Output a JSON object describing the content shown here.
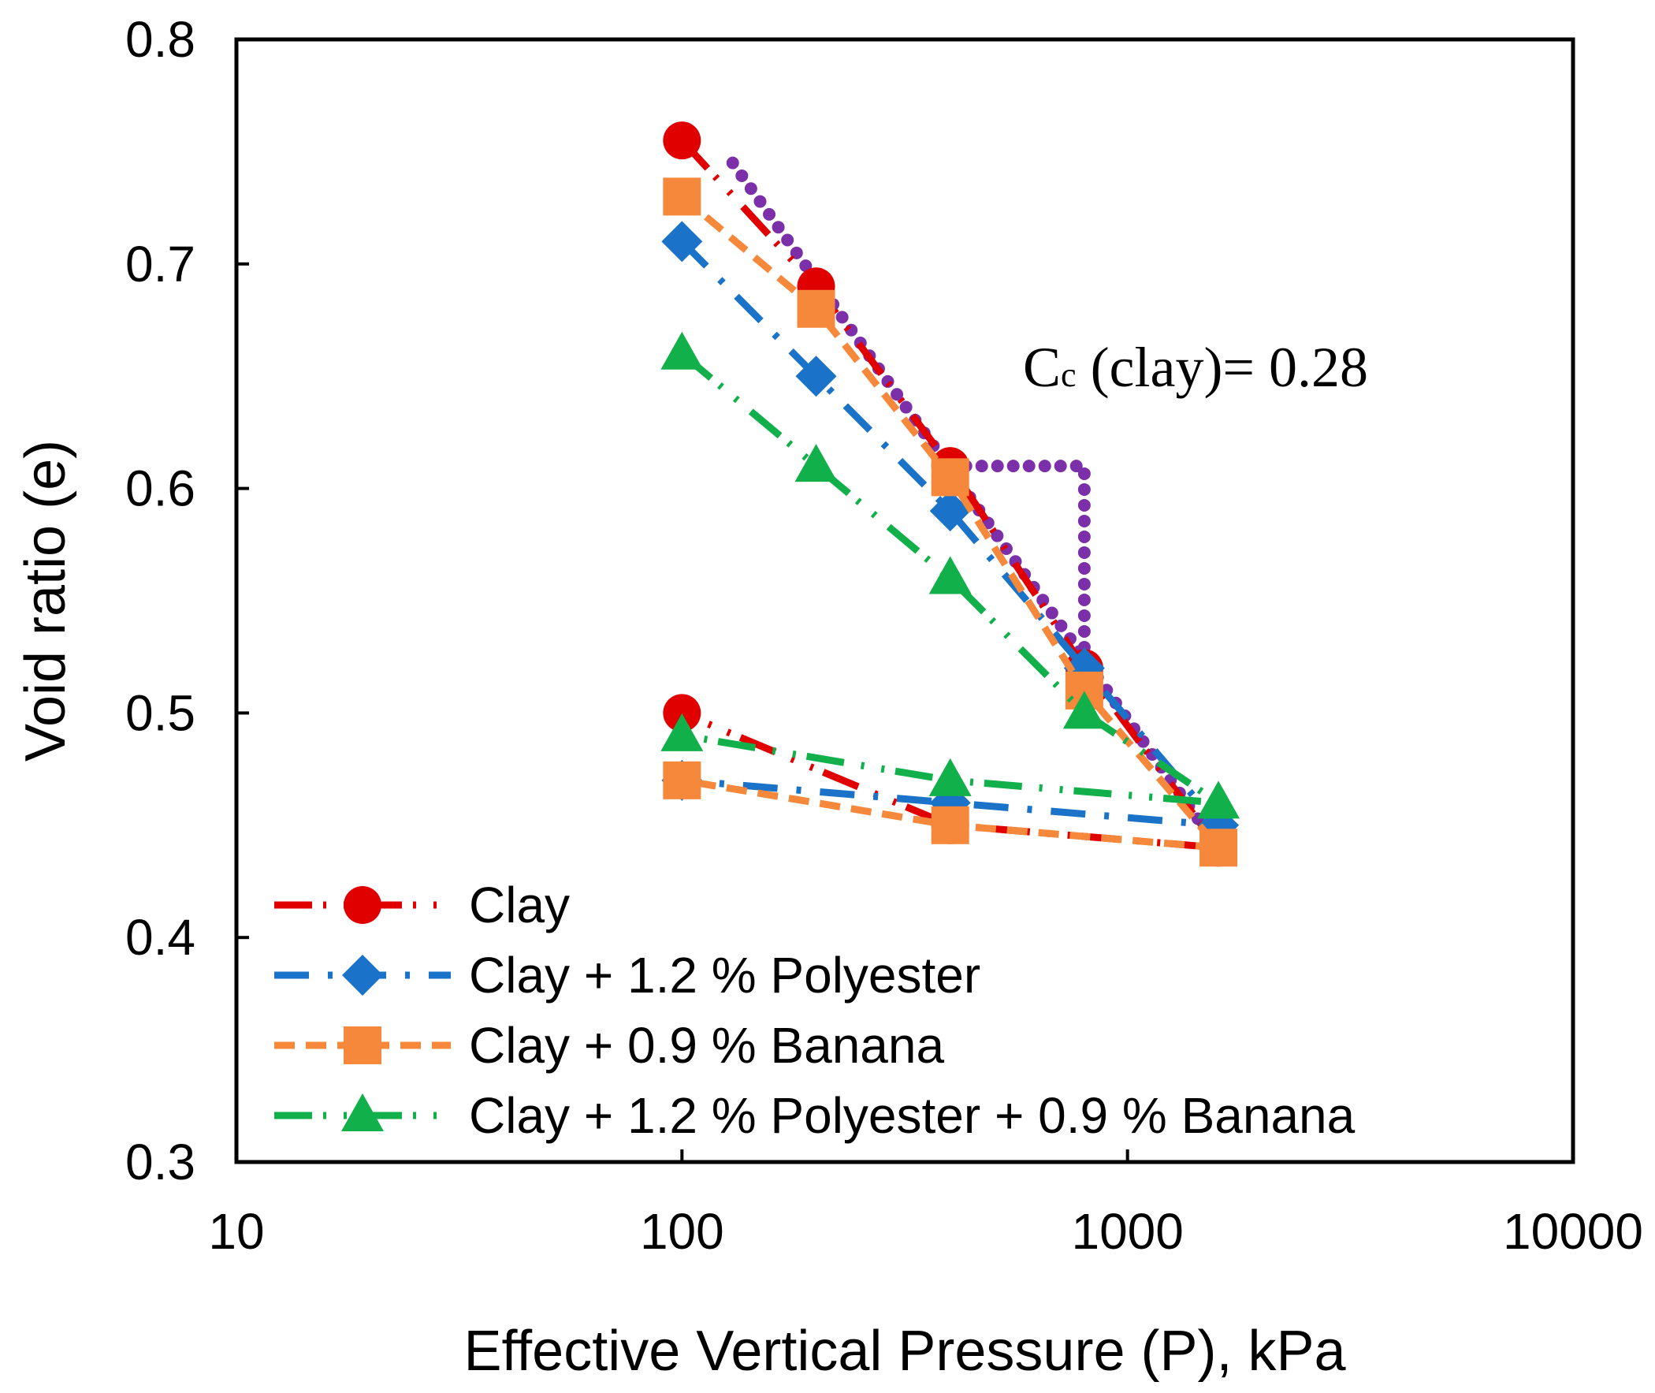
{
  "chart_data": {
    "type": "line",
    "x_scale": "log",
    "xlabel": "Effective Vertical Pressure (P), kPa",
    "ylabel": "Void ratio (e)",
    "xlim": [
      10,
      10000
    ],
    "ylim": [
      0.3,
      0.8
    ],
    "x_ticks": [
      10,
      100,
      1000,
      10000
    ],
    "x_tick_labels": [
      "10",
      "100",
      "1000",
      "10000"
    ],
    "y_ticks": [
      0.3,
      0.4,
      0.5,
      0.6,
      0.7,
      0.8
    ],
    "y_tick_labels": [
      "0.3",
      "0.4",
      "0.5",
      "0.6",
      "0.7",
      "0.8"
    ],
    "grid": false,
    "legend_position": "bottom-left",
    "annotation": {
      "main": "C",
      "sub": "c",
      "rest": " (clay)= 0.28"
    },
    "series": [
      {
        "name": "Clay",
        "color": "#e00000",
        "marker": "circle",
        "line_style": "long-dash-dot",
        "x": [
          100,
          200,
          400,
          800,
          1600,
          400,
          100
        ],
        "y": [
          0.755,
          0.69,
          0.61,
          0.52,
          0.44,
          0.45,
          0.5
        ]
      },
      {
        "name": "Clay + 1.2 % Polyester",
        "color": "#1a73c8",
        "marker": "diamond",
        "line_style": "dash-dot",
        "x": [
          100,
          200,
          400,
          800,
          1600,
          400,
          100
        ],
        "y": [
          0.71,
          0.65,
          0.59,
          0.52,
          0.45,
          0.46,
          0.47
        ]
      },
      {
        "name": "Clay + 0.9 % Banana",
        "color": "#f5883a",
        "marker": "square",
        "line_style": "dash",
        "x": [
          100,
          200,
          400,
          800,
          1600,
          400,
          100
        ],
        "y": [
          0.73,
          0.68,
          0.605,
          0.51,
          0.44,
          0.45,
          0.47
        ]
      },
      {
        "name": "Clay + 1.2 % Polyester + 0.9 % Banana",
        "color": "#12b04a",
        "marker": "triangle",
        "line_style": "long-dash-dot",
        "x": [
          100,
          200,
          400,
          800,
          1600,
          400,
          100
        ],
        "y": [
          0.66,
          0.61,
          0.56,
          0.5,
          0.46,
          0.47,
          0.49
        ]
      }
    ],
    "construction": {
      "color": "#7b2fa8",
      "line_style": "dotted",
      "fit_line": {
        "x": [
          130,
          1600
        ],
        "y": [
          0.745,
          0.44
        ]
      },
      "triangle": {
        "x": [
          400,
          800,
          800
        ],
        "y": [
          0.61,
          0.61,
          0.52
        ]
      }
    }
  }
}
